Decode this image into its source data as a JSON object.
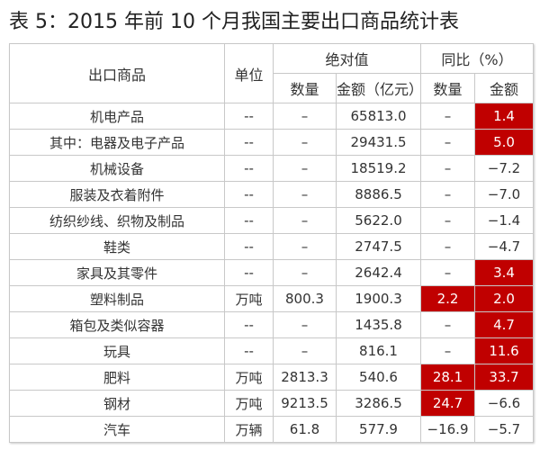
{
  "title": "表 5：2015 年前 10 个月我国主要出口商品统计表",
  "header": {
    "product": "出口商品",
    "unit": "单位",
    "absolute": "绝对值",
    "yoy": "同比（%）",
    "qty": "数量",
    "amount": "金额（亿元）",
    "yoy_qty": "数量",
    "yoy_amount": "金额"
  },
  "highlight_color": "#c00000",
  "rows": [
    {
      "name": "机电产品",
      "unit": "--",
      "qty": "–",
      "amount": "65813.0",
      "yoy_qty": "–",
      "yoy_amount": "1.4",
      "hq": false,
      "ha": true
    },
    {
      "name": "其中：电器及电子产品",
      "unit": "--",
      "qty": "–",
      "amount": "29431.5",
      "yoy_qty": "–",
      "yoy_amount": "5.0",
      "hq": false,
      "ha": true
    },
    {
      "name": "机械设备",
      "unit": "--",
      "qty": "–",
      "amount": "18519.2",
      "yoy_qty": "–",
      "yoy_amount": "−7.2",
      "hq": false,
      "ha": false
    },
    {
      "name": "服装及衣着附件",
      "unit": "--",
      "qty": "–",
      "amount": "8886.5",
      "yoy_qty": "–",
      "yoy_amount": "−7.0",
      "hq": false,
      "ha": false
    },
    {
      "name": "纺织纱线、织物及制品",
      "unit": "--",
      "qty": "–",
      "amount": "5622.0",
      "yoy_qty": "–",
      "yoy_amount": "−1.4",
      "hq": false,
      "ha": false
    },
    {
      "name": "鞋类",
      "unit": "--",
      "qty": "–",
      "amount": "2747.5",
      "yoy_qty": "–",
      "yoy_amount": "−4.7",
      "hq": false,
      "ha": false
    },
    {
      "name": "家具及其零件",
      "unit": "--",
      "qty": "–",
      "amount": "2642.4",
      "yoy_qty": "–",
      "yoy_amount": "3.4",
      "hq": false,
      "ha": true
    },
    {
      "name": "塑料制品",
      "unit": "万吨",
      "qty": "800.3",
      "amount": "1900.3",
      "yoy_qty": "2.2",
      "yoy_amount": "2.0",
      "hq": true,
      "ha": true
    },
    {
      "name": "箱包及类似容器",
      "unit": "--",
      "qty": "–",
      "amount": "1435.8",
      "yoy_qty": "–",
      "yoy_amount": "4.7",
      "hq": false,
      "ha": true
    },
    {
      "name": "玩具",
      "unit": "--",
      "qty": "–",
      "amount": "816.1",
      "yoy_qty": "–",
      "yoy_amount": "11.6",
      "hq": false,
      "ha": true
    },
    {
      "name": "肥料",
      "unit": "万吨",
      "qty": "2813.3",
      "amount": "540.6",
      "yoy_qty": "28.1",
      "yoy_amount": "33.7",
      "hq": true,
      "ha": true
    },
    {
      "name": "钢材",
      "unit": "万吨",
      "qty": "9213.5",
      "amount": "3286.5",
      "yoy_qty": "24.7",
      "yoy_amount": "−6.6",
      "hq": true,
      "ha": false
    },
    {
      "name": "汽车",
      "unit": "万辆",
      "qty": "61.8",
      "amount": "577.9",
      "yoy_qty": "−16.9",
      "yoy_amount": "−5.7",
      "hq": false,
      "ha": false
    }
  ]
}
